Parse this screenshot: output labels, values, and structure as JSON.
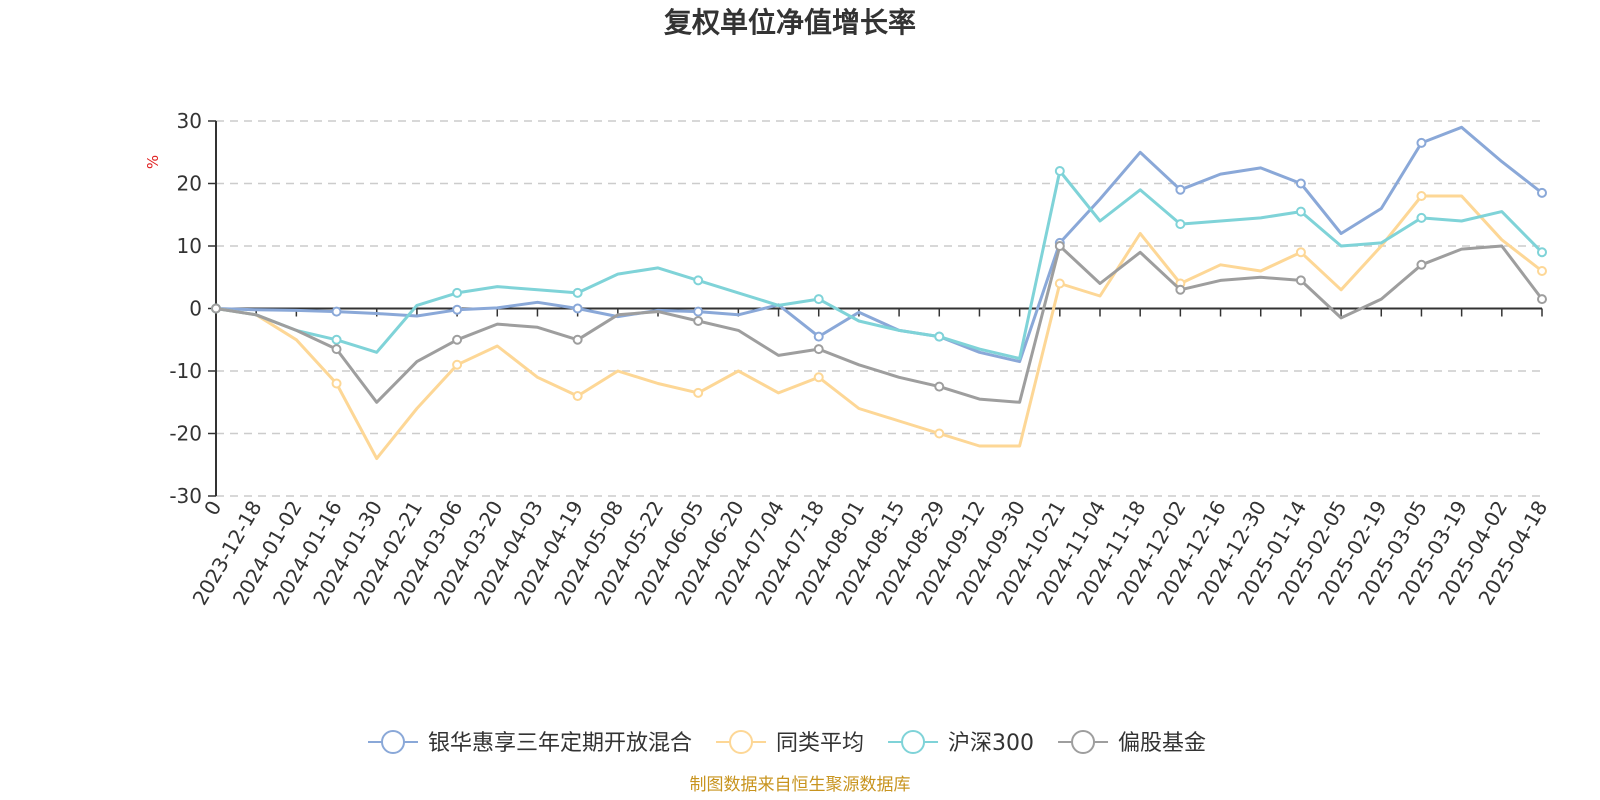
{
  "chart_data": {
    "type": "line",
    "title": "复权单位净值增长率",
    "ylabel": "%",
    "ylim": [
      -30,
      30
    ],
    "yticks": [
      -30,
      -20,
      -10,
      0,
      10,
      20,
      30
    ],
    "ytick_labels": [
      "-30",
      "-20",
      "-10",
      "0",
      "10",
      "20",
      "30"
    ],
    "grid": true,
    "legend_position": "bottom",
    "x_tick_labels": [
      "0",
      "2023-12-18",
      "2024-01-02",
      "2024-01-16",
      "2024-01-30",
      "2024-02-21",
      "2024-03-06",
      "2024-03-20",
      "2024-04-03",
      "2024-04-19",
      "2024-05-08",
      "2024-05-22",
      "2024-06-05",
      "2024-06-20",
      "2024-07-04",
      "2024-07-18",
      "2024-08-01",
      "2024-08-15",
      "2024-08-29",
      "2024-09-12",
      "2024-09-30",
      "2024-10-21",
      "2024-11-04",
      "2024-11-18",
      "2024-12-02",
      "2024-12-16",
      "2024-12-30",
      "2025-01-14",
      "2025-02-05",
      "2025-02-19",
      "2025-03-05",
      "2025-03-19",
      "2025-04-02",
      "2025-04-18"
    ],
    "x_index": [
      0,
      1,
      2,
      3,
      4,
      5,
      6,
      7,
      8,
      9,
      10,
      11,
      12,
      13,
      14,
      15,
      16,
      17,
      18,
      19,
      20,
      21,
      22,
      23,
      24,
      25,
      26,
      27,
      28,
      29,
      30,
      31,
      32,
      33
    ],
    "series": [
      {
        "name": "银华惠享三年定期开放混合",
        "color": "#8aa8d8",
        "values": [
          0,
          -0.2,
          -0.3,
          -0.5,
          -0.8,
          -1.2,
          -0.2,
          0.1,
          1.0,
          0.0,
          -1.3,
          -0.3,
          -0.5,
          -1.0,
          0.6,
          -4.5,
          -0.6,
          -3.5,
          -4.5,
          -7.0,
          -8.5,
          10.5,
          17.5,
          25.0,
          19.0,
          21.5,
          22.5,
          20.0,
          12.0,
          16.0,
          26.5,
          29.0,
          23.5,
          18.5
        ]
      },
      {
        "name": "同类平均",
        "color": "#fdd796",
        "values": [
          0,
          -1.0,
          -5.0,
          -12.0,
          -24.0,
          -16.0,
          -9.0,
          -6.0,
          -11.0,
          -14.0,
          -10.0,
          -12.0,
          -13.5,
          -10.0,
          -13.5,
          -11.0,
          -16.0,
          -18.0,
          -20.0,
          -22.0,
          -22.0,
          4.0,
          2.0,
          12.0,
          4.0,
          7.0,
          6.0,
          9.0,
          3.0,
          10.0,
          18.0,
          18.0,
          11.0,
          6.0
        ]
      },
      {
        "name": "沪深300",
        "color": "#7fd3d8",
        "values": [
          0,
          -1.0,
          -3.5,
          -5.0,
          -7.0,
          0.5,
          2.5,
          3.5,
          3.0,
          2.5,
          5.5,
          6.5,
          4.5,
          2.5,
          0.5,
          1.5,
          -2.0,
          -3.5,
          -4.5,
          -6.5,
          -8.0,
          22.0,
          14.0,
          19.0,
          13.5,
          14.0,
          14.5,
          15.5,
          10.0,
          10.5,
          14.5,
          14.0,
          15.5,
          9.0
        ]
      },
      {
        "name": "偏股基金",
        "color": "#9e9e9e",
        "values": [
          0,
          -1.0,
          -3.5,
          -6.5,
          -15.0,
          -8.5,
          -5.0,
          -2.5,
          -3.0,
          -5.0,
          -1.0,
          -0.5,
          -2.0,
          -3.5,
          -7.5,
          -6.5,
          -9.0,
          -11.0,
          -12.5,
          -14.5,
          -15.0,
          10.0,
          4.0,
          9.0,
          3.0,
          4.5,
          5.0,
          4.5,
          -1.5,
          1.5,
          7.0,
          9.5,
          10.0,
          1.5
        ]
      }
    ]
  },
  "footer": {
    "source": "制图数据来自恒生聚源数据库"
  }
}
